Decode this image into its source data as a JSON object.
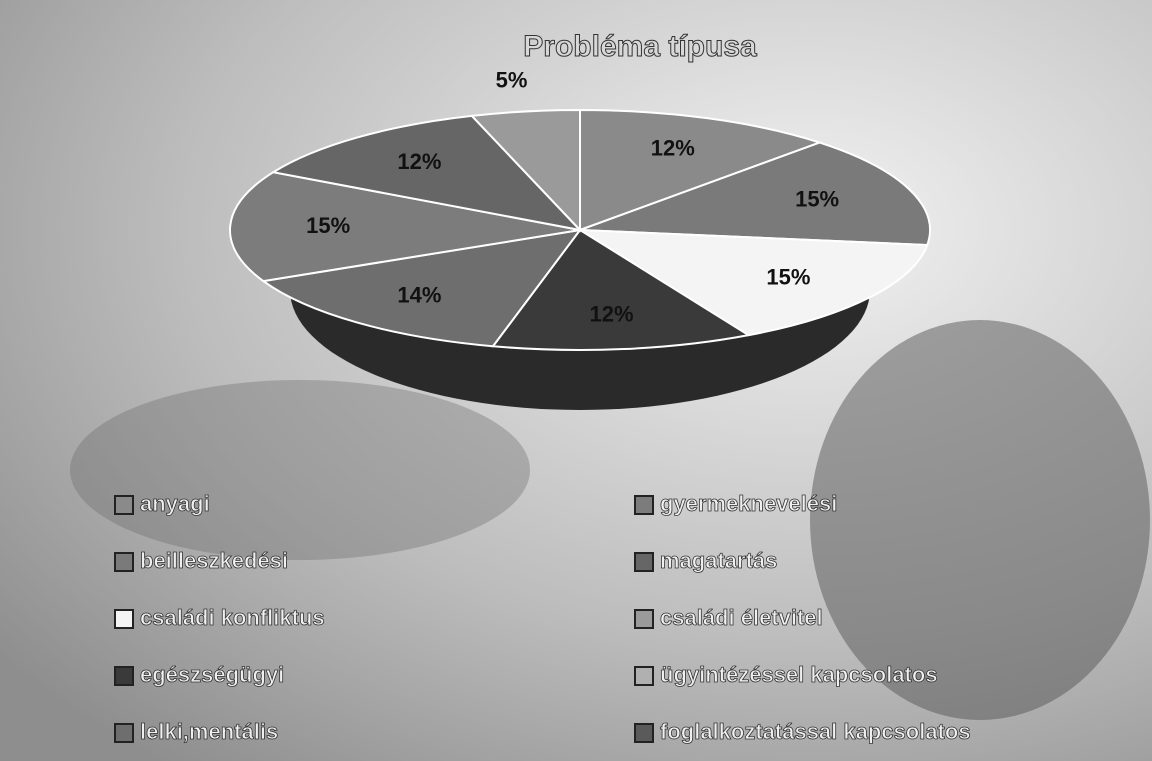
{
  "chart_data": {
    "type": "pie",
    "title": "Probléma típusa",
    "categories": [
      "anyagi",
      "beilleszkedési",
      "családi konfliktus",
      "egészségügyi",
      "lelki,mentális",
      "gyermeknevelési",
      "magatartás",
      "családi életvitel",
      "ügyintézéssel kapcsolatos",
      "foglalkoztatással kapcsolatos"
    ],
    "values": [
      12,
      15,
      15,
      12,
      14,
      15,
      12,
      5,
      0,
      0
    ],
    "value_labels": [
      "12%",
      "15%",
      "15%",
      "12%",
      "14%",
      "15%",
      "12%",
      "5%",
      null,
      null
    ],
    "colors": [
      "#8a8a8a",
      "#7a7a7a",
      "#f4f4f4",
      "#3a3a3a",
      "#6e6e6e",
      "#7c7c7c",
      "#666666",
      "#9a9a9a",
      "#b0b0b0",
      "#5a5a5a"
    ],
    "legend": "bottom"
  }
}
